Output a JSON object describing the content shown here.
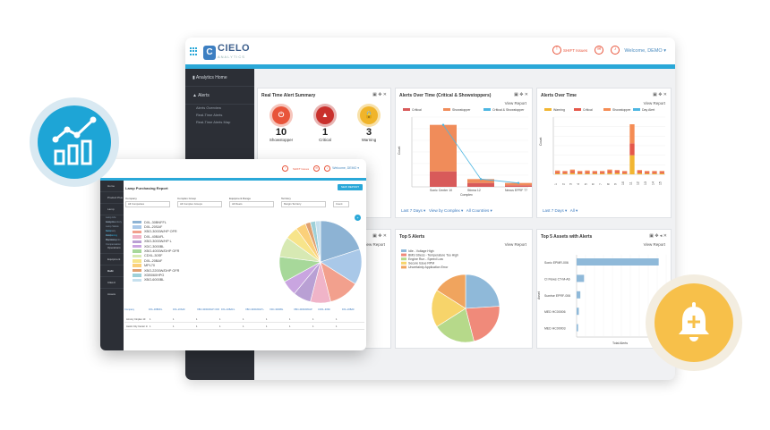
{
  "back": {
    "logo": "CIELO",
    "logo_sub": "ANALYTICS",
    "shift_issues": "SHIFT Issues",
    "welcome": "Welcome, DEMO",
    "sidebar": [
      {
        "label": "Analytics Home"
      },
      {
        "label": "Alerts"
      },
      {
        "label": "Alerts Overview"
      },
      {
        "label": "Real-Time Alerts"
      },
      {
        "label": "Real-Time Alerts Map"
      }
    ],
    "realtime": {
      "title": "Real Time Alert Summary",
      "tiles": [
        {
          "count": "10",
          "label": "Showstopper",
          "color": "#e8543a"
        },
        {
          "count": "1",
          "label": "Critical",
          "color": "#c9302c"
        },
        {
          "count": "3",
          "label": "Warning",
          "color": "#f0b42a"
        }
      ]
    },
    "alerts_time_1": {
      "title": "Alerts Over Time (Critical & Showstoppers)",
      "view_report": "View Report",
      "legend": [
        "Critical",
        "Showstopper",
        "Critical & Showstopper"
      ],
      "footer": [
        "Last 7 Days",
        "View by Complex",
        "All Countries"
      ],
      "ylabel": "Count",
      "xlabel": "Complex"
    },
    "alerts_time_2": {
      "title": "Alerts Over Time",
      "view_report": "View Report",
      "legend": [
        "Warning",
        "Critical",
        "Showstopper",
        "Day Alert"
      ],
      "footer": [
        "Last 7 Days",
        "All"
      ],
      "ylabel": "Count"
    },
    "top5_alerts": {
      "title": "Top 5 Alerts",
      "view_report": "View Report",
      "legend": [
        "Idle - Voltage High",
        "BMS Stress - Temperature Too High",
        "Engine Run - Speed Low",
        "Secure Issue RPM",
        "Uncertainty Application Error"
      ]
    },
    "top5_assets": {
      "title": "Top 5 Assets with Alerts",
      "view_report": "View Report",
      "ylabel": "Asset",
      "xlabel": "Total Alerts",
      "assets": [
        "Sonic EPMR-006",
        "CI Flows CT-M-A6",
        "Sunrise EPRF-006",
        "MED HC00006",
        "MED HC00003"
      ]
    },
    "panel_tools": "▣ ✥ ✕",
    "panel_tools_b": "▣ ✥ ◂ ✕",
    "view_report": "View Report"
  },
  "front": {
    "shift_issues": "SHIFT Issues",
    "welcome": "Welcome, DEMO",
    "title": "Lamp Purchasing Report",
    "new_report": "NEW REPORT",
    "filters": [
      {
        "label": "Company",
        "value": "All Companies"
      },
      {
        "label": "Complex Group",
        "value": "All Complex Groups"
      },
      {
        "label": "Equipment Range",
        "value": "All Fleets"
      },
      {
        "label": "Territory",
        "value": "Margin Territory"
      }
    ],
    "view_toggle": "Count",
    "sidebar": [
      {
        "label": "Home"
      },
      {
        "label": "Product Plus"
      },
      {
        "label": "Lamp"
      },
      {
        "label": "Operations"
      },
      {
        "label": "Equipment Hub"
      },
      {
        "label": "Audit"
      },
      {
        "label": "CIELO Assets"
      }
    ],
    "sidebar_sub": [
      "Lamp Life Analysis",
      "Lamp Inventory",
      "Lamp Status Summary",
      "Lamp Purchasing",
      "Lamp Replacements",
      "Mandatory Compensation"
    ],
    "pie_legend": [
      {
        "label": "DXL-30BNFFL",
        "color": "#8db3d4"
      },
      {
        "label": "DXL-20SAF",
        "color": "#a9c8e8"
      },
      {
        "label": "XBO-3000W/HP OFR",
        "color": "#f2a08d"
      },
      {
        "label": "DXL-40BAFL",
        "color": "#f0b4c8"
      },
      {
        "label": "XBO-3000W/HP L",
        "color": "#b9a0d4"
      },
      {
        "label": "XDC-3000BL",
        "color": "#c9a5e0"
      },
      {
        "label": "XBO-4000W/DHP OFR",
        "color": "#a7d89a"
      },
      {
        "label": "CDXL-30SF",
        "color": "#d7e9b3"
      },
      {
        "label": "DXL-20BAF",
        "color": "#f7e48a"
      },
      {
        "label": "MPL70",
        "color": "#fbd07a"
      },
      {
        "label": "XBO-2200W/DHP OFR",
        "color": "#e0a070"
      },
      {
        "label": "XDB060HPG",
        "color": "#9ed0d8"
      },
      {
        "label": "XBO-6000BL",
        "color": "#c6e0ee"
      }
    ],
    "table": {
      "headers": [
        "Company",
        "DXL-30BNFL",
        "DXL-20SAF",
        "XBO-3000W/HP OFR",
        "DXL-40BAFL",
        "XBO-3000W/HP L",
        "XDC-3000BL",
        "XBO-4000W/DHP",
        "CDXL-30SF",
        "DXL-20BAF"
      ],
      "rows": [
        [
          "Armory Cinplex 10",
          "1",
          "1",
          "1",
          "1",
          "1",
          "1",
          "1",
          "1",
          "1"
        ],
        [
          "Austin City Center 14",
          "1",
          "1",
          "1",
          "1",
          "1",
          "1",
          "1",
          "1",
          "1"
        ]
      ]
    }
  },
  "chart_data": [
    {
      "type": "bar",
      "title": "Alerts Over Time (Critical & Showstoppers)",
      "xlabel": "Complex",
      "ylabel": "Count",
      "categories": [
        "Sonic Center 10",
        "Stinna 12",
        "Nexus EPRF 77"
      ],
      "series": [
        {
          "name": "Critical",
          "values": [
            4,
            1,
            0.4
          ]
        },
        {
          "name": "Showstopper",
          "values": [
            12,
            1,
            0.6
          ]
        },
        {
          "name": "Critical & Showstopper",
          "values": [
            16,
            2,
            1
          ]
        }
      ],
      "ylim": [
        0,
        18
      ]
    },
    {
      "type": "bar",
      "title": "Alerts Over Time",
      "ylabel": "Count",
      "categories": [
        "1",
        "2",
        "3",
        "4",
        "5",
        "6",
        "7",
        "8",
        "9",
        "10",
        "11",
        "12",
        "13",
        "14",
        "15"
      ],
      "series": [
        {
          "name": "Warning",
          "values": [
            0.2,
            0.2,
            0.3,
            0.2,
            0.2,
            0.2,
            0.2,
            0.3,
            0.3,
            0.2,
            4,
            0.3,
            0.2,
            0.2,
            0.2
          ]
        },
        {
          "name": "Critical",
          "values": [
            0.3,
            0.3,
            0.4,
            0.3,
            0.3,
            0.3,
            0.3,
            0.4,
            0.4,
            0.3,
            2.5,
            0.4,
            0.3,
            0.3,
            0.3
          ]
        },
        {
          "name": "Showstopper",
          "values": [
            0.3,
            0.2,
            0.3,
            0.2,
            0.3,
            0.2,
            0.2,
            0.3,
            0.2,
            0.2,
            4,
            0.2,
            0.2,
            0.2,
            0.2
          ]
        }
      ],
      "ylim": [
        0,
        12
      ]
    },
    {
      "type": "pie",
      "title": "Top 5 Alerts",
      "categories": [
        "Idle - Voltage High",
        "BMS Stress - Temperature Too High",
        "Engine Run - Speed Low",
        "Secure Issue RPM",
        "Uncertainty Application Error"
      ],
      "values": [
        24,
        22,
        20,
        18,
        16
      ]
    },
    {
      "type": "bar",
      "title": "Top 5 Assets with Alerts",
      "ylabel": "Asset",
      "xlabel": "Total Alerts",
      "categories": [
        "Sonic EPMR-006",
        "CI Flows CT-M-A6",
        "Sunrise EPRF-006",
        "MED HC00006",
        "MED HC00003"
      ],
      "values": [
        22,
        2,
        1,
        0.6,
        0.4
      ]
    },
    {
      "type": "pie",
      "title": "Lamp Purchasing Report",
      "categories": [
        "DXL-30BNFFL",
        "DXL-20SAF",
        "XBO-3000W/HP OFR",
        "DXL-40BAFL",
        "XBO-3000W/HP L",
        "XDC-3000BL",
        "XBO-4000W/DHP OFR",
        "CDXL-30SF",
        "DXL-20BAF",
        "MPL70",
        "XBO-2200W/DHP OFR",
        "XDB060HPG",
        "XBO-6000BL"
      ],
      "values": [
        20,
        14,
        12,
        8,
        7,
        6,
        10,
        8,
        5,
        4,
        2,
        2,
        2
      ]
    }
  ]
}
